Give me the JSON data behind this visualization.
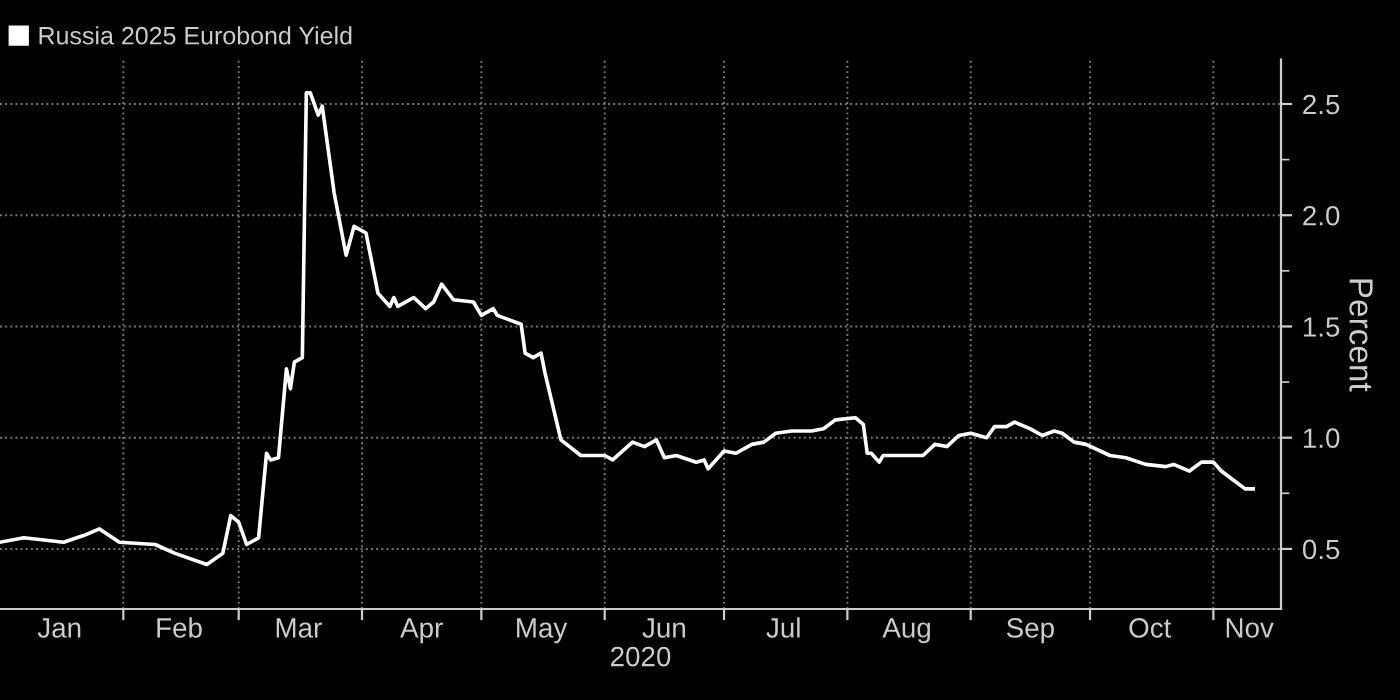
{
  "chart_data": {
    "type": "line",
    "x": [
      "2020-01-01",
      "2020-01-07",
      "2020-01-12",
      "2020-01-17",
      "2020-01-22",
      "2020-01-26",
      "2020-01-31",
      "2020-02-09",
      "2020-02-14",
      "2020-02-22",
      "2020-02-26",
      "2020-02-28",
      "2020-03-01",
      "2020-03-03",
      "2020-03-06",
      "2020-03-08",
      "2020-03-09",
      "2020-03-11",
      "2020-03-13",
      "2020-03-14",
      "2020-03-15",
      "2020-03-17",
      "2020-03-18",
      "2020-03-19",
      "2020-03-21",
      "2020-03-22",
      "2020-03-25",
      "2020-03-28",
      "2020-03-30",
      "2020-04-02",
      "2020-04-03",
      "2020-04-05",
      "2020-04-08",
      "2020-04-09",
      "2020-04-10",
      "2020-04-14",
      "2020-04-17",
      "2020-04-19",
      "2020-04-21",
      "2020-04-24",
      "2020-04-29",
      "2020-05-01",
      "2020-05-04",
      "2020-05-05",
      "2020-05-11",
      "2020-05-12",
      "2020-05-14",
      "2020-05-16",
      "2020-05-17",
      "2020-05-21",
      "2020-05-26",
      "2020-06-01",
      "2020-06-03",
      "2020-06-08",
      "2020-06-11",
      "2020-06-14",
      "2020-06-16",
      "2020-06-19",
      "2020-06-24",
      "2020-06-26",
      "2020-06-27",
      "2020-07-01",
      "2020-07-04",
      "2020-07-08",
      "2020-07-11",
      "2020-07-14",
      "2020-07-18",
      "2020-07-23",
      "2020-07-26",
      "2020-07-29",
      "2020-08-03",
      "2020-08-05",
      "2020-08-06",
      "2020-08-07",
      "2020-08-09",
      "2020-08-10",
      "2020-08-13",
      "2020-08-20",
      "2020-08-23",
      "2020-08-26",
      "2020-08-29",
      "2020-09-01",
      "2020-09-05",
      "2020-09-07",
      "2020-09-10",
      "2020-09-12",
      "2020-09-16",
      "2020-09-19",
      "2020-09-22",
      "2020-09-24",
      "2020-09-27",
      "2020-09-30",
      "2020-10-06",
      "2020-10-10",
      "2020-10-15",
      "2020-10-20",
      "2020-10-22",
      "2020-10-26",
      "2020-10-29",
      "2020-11-01",
      "2020-11-03",
      "2020-11-06",
      "2020-11-09",
      "2020-11-11"
    ],
    "series": [
      {
        "name": "Russia 2025 Eurobond Yield",
        "color": "#ffffff",
        "values": [
          0.53,
          0.55,
          0.54,
          0.53,
          0.56,
          0.59,
          0.53,
          0.52,
          0.48,
          0.43,
          0.48,
          0.65,
          0.62,
          0.52,
          0.55,
          0.93,
          0.9,
          0.91,
          1.31,
          1.22,
          1.34,
          1.36,
          2.55,
          2.55,
          2.45,
          2.49,
          2.1,
          1.82,
          1.95,
          1.92,
          1.83,
          1.65,
          1.59,
          1.63,
          1.59,
          1.63,
          1.58,
          1.61,
          1.69,
          1.62,
          1.61,
          1.55,
          1.58,
          1.55,
          1.51,
          1.38,
          1.36,
          1.38,
          1.29,
          0.99,
          0.92,
          0.92,
          0.9,
          0.98,
          0.96,
          0.99,
          0.91,
          0.92,
          0.89,
          0.9,
          0.86,
          0.94,
          0.93,
          0.97,
          0.98,
          1.02,
          1.03,
          1.03,
          1.04,
          1.08,
          1.09,
          1.06,
          0.93,
          0.93,
          0.89,
          0.92,
          0.92,
          0.92,
          0.97,
          0.96,
          1.01,
          1.02,
          1.0,
          1.05,
          1.05,
          1.07,
          1.04,
          1.01,
          1.03,
          1.02,
          0.98,
          0.97,
          0.92,
          0.91,
          0.88,
          0.87,
          0.88,
          0.85,
          0.89,
          0.89,
          0.85,
          0.81,
          0.77,
          0.77
        ]
      }
    ],
    "xlabel": "2020",
    "ylabel": "Percent",
    "xlim": [
      "2020-01-01",
      "2020-11-18"
    ],
    "xticks": [
      {
        "value": "2020-01-16",
        "label": "Jan"
      },
      {
        "value": "2020-02-01",
        "label": null
      },
      {
        "value": "2020-02-15",
        "label": "Feb"
      },
      {
        "value": "2020-03-01",
        "label": null
      },
      {
        "value": "2020-03-16",
        "label": "Mar"
      },
      {
        "value": "2020-04-01",
        "label": null
      },
      {
        "value": "2020-04-16",
        "label": "Apr"
      },
      {
        "value": "2020-05-01",
        "label": null
      },
      {
        "value": "2020-05-16",
        "label": "May"
      },
      {
        "value": "2020-06-01",
        "label": null
      },
      {
        "value": "2020-06-16",
        "label": "Jun"
      },
      {
        "value": "2020-07-01",
        "label": null
      },
      {
        "value": "2020-07-16",
        "label": "Jul"
      },
      {
        "value": "2020-08-01",
        "label": null
      },
      {
        "value": "2020-08-16",
        "label": "Aug"
      },
      {
        "value": "2020-09-01",
        "label": null
      },
      {
        "value": "2020-09-16",
        "label": "Sep"
      },
      {
        "value": "2020-10-01",
        "label": null
      },
      {
        "value": "2020-10-16",
        "label": "Oct"
      },
      {
        "value": "2020-11-01",
        "label": null
      },
      {
        "value": "2020-11-10",
        "label": "Nov"
      }
    ],
    "ylim": [
      0.23,
      2.7
    ],
    "yticks": [
      {
        "value": 0.5,
        "label": "0.5"
      },
      {
        "value": 0.75,
        "label": null
      },
      {
        "value": 1,
        "label": "1.0"
      },
      {
        "value": 1.25,
        "label": null
      },
      {
        "value": 1.5,
        "label": "1.5"
      },
      {
        "value": 1.75,
        "label": null
      },
      {
        "value": 2,
        "label": "2.0"
      },
      {
        "value": 2.25,
        "label": null
      },
      {
        "value": 2.5,
        "label": "2.5"
      }
    ],
    "grid": true,
    "legend": "top left",
    "marker": "none",
    "line_style": "solid"
  }
}
